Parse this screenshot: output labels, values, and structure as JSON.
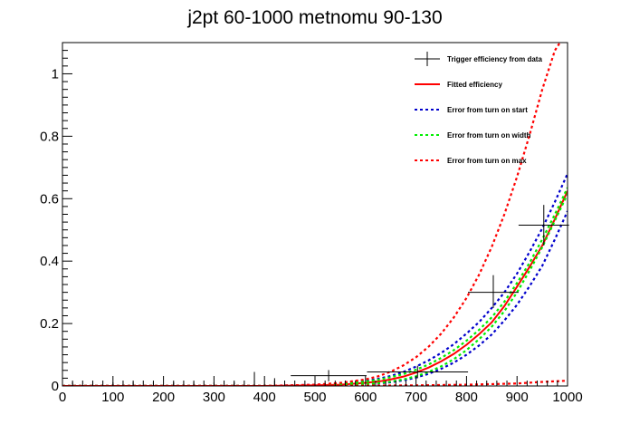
{
  "chart_data": {
    "type": "line",
    "title": "j2pt 60-1000 metnomu 90-130",
    "xlabel": "",
    "ylabel": "",
    "xlim": [
      0,
      1000
    ],
    "ylim": [
      0,
      1.1
    ],
    "x_ticks": [
      0,
      100,
      200,
      300,
      400,
      500,
      600,
      700,
      800,
      900,
      1000
    ],
    "y_ticks": [
      0,
      0.2,
      0.4,
      0.6,
      0.8,
      1
    ],
    "grid": false,
    "legend_position": "top-right",
    "colors": {
      "data": "#000000",
      "fit": "#ff0000",
      "start": "#0000cc",
      "width": "#00ee00",
      "max": "#ff0000"
    },
    "legend": [
      {
        "key": "data",
        "label": "Trigger efficiency from data",
        "style": "errorbar"
      },
      {
        "key": "fit",
        "label": "Fitted efficiency",
        "style": "solid"
      },
      {
        "key": "start",
        "label": "Error from turn on start",
        "style": "dotted"
      },
      {
        "key": "width",
        "label": "Error from turn on width",
        "style": "dotted"
      },
      {
        "key": "max",
        "label": "Error from turn on max",
        "style": "dotted"
      }
    ],
    "data_points": [
      {
        "x": 20,
        "y": 0,
        "xerr": 20,
        "yerr_up": 0.012,
        "yerr_down": 0
      },
      {
        "x": 60,
        "y": 0,
        "xerr": 20,
        "yerr_up": 0.012,
        "yerr_down": 0
      },
      {
        "x": 100,
        "y": 0,
        "xerr": 20,
        "yerr_up": 0.012,
        "yerr_down": 0
      },
      {
        "x": 140,
        "y": 0,
        "xerr": 20,
        "yerr_up": 0.012,
        "yerr_down": 0
      },
      {
        "x": 180,
        "y": 0,
        "xerr": 20,
        "yerr_up": 0.012,
        "yerr_down": 0
      },
      {
        "x": 220,
        "y": 0,
        "xerr": 20,
        "yerr_up": 0.012,
        "yerr_down": 0
      },
      {
        "x": 260,
        "y": 0,
        "xerr": 20,
        "yerr_up": 0.012,
        "yerr_down": 0
      },
      {
        "x": 300,
        "y": 0,
        "xerr": 20,
        "yerr_up": 0.012,
        "yerr_down": 0
      },
      {
        "x": 340,
        "y": 0,
        "xerr": 20,
        "yerr_up": 0.012,
        "yerr_down": 0
      },
      {
        "x": 380,
        "y": 0,
        "xerr": 20,
        "yerr_up": 0.045,
        "yerr_down": 0
      },
      {
        "x": 420,
        "y": 0,
        "xerr": 20,
        "yerr_up": 0.025,
        "yerr_down": 0
      },
      {
        "x": 527,
        "y": 0.033,
        "xerr": 75,
        "yerr_up": 0.018,
        "yerr_down": 0.018
      },
      {
        "x": 703,
        "y": 0.045,
        "xerr": 100,
        "yerr_up": 0.02,
        "yerr_down": 0.02
      },
      {
        "x": 853,
        "y": 0.3,
        "xerr": 50,
        "yerr_up": 0.055,
        "yerr_down": 0.05
      },
      {
        "x": 953,
        "y": 0.515,
        "xerr": 50,
        "yerr_up": 0.065,
        "yerr_down": 0.065
      }
    ],
    "series": [
      {
        "name": "Fitted efficiency",
        "key": "fit",
        "x": [
          0,
          100,
          200,
          300,
          400,
          500,
          550,
          600,
          625,
          650,
          675,
          700,
          725,
          750,
          775,
          800,
          825,
          850,
          875,
          900,
          925,
          950,
          975,
          1000
        ],
        "y": [
          0,
          0,
          0,
          0,
          0,
          0.002,
          0.004,
          0.01,
          0.014,
          0.021,
          0.03,
          0.043,
          0.059,
          0.079,
          0.103,
          0.132,
          0.166,
          0.204,
          0.256,
          0.318,
          0.382,
          0.45,
          0.535,
          0.625
        ]
      },
      {
        "name": "Error from turn on start",
        "key": "start",
        "x": [
          0,
          100,
          200,
          300,
          400,
          500,
          550,
          600,
          625,
          650,
          675,
          700,
          725,
          750,
          775,
          800,
          825,
          850,
          875,
          900,
          925,
          950,
          975,
          1000
        ],
        "y": [
          0,
          0,
          0,
          0,
          0,
          0.004,
          0.008,
          0.016,
          0.023,
          0.032,
          0.045,
          0.062,
          0.082,
          0.106,
          0.134,
          0.168,
          0.205,
          0.25,
          0.3,
          0.36,
          0.43,
          0.505,
          0.59,
          0.68
        ]
      },
      {
        "name": "Error from turn on start",
        "key": "start",
        "x": [
          0,
          100,
          200,
          300,
          400,
          500,
          550,
          600,
          625,
          650,
          675,
          700,
          725,
          750,
          775,
          800,
          825,
          850,
          875,
          900,
          925,
          950,
          975,
          1000
        ],
        "y": [
          0,
          0,
          0,
          0,
          0,
          0.001,
          0.002,
          0.005,
          0.008,
          0.012,
          0.018,
          0.027,
          0.039,
          0.055,
          0.075,
          0.1,
          0.13,
          0.165,
          0.21,
          0.26,
          0.32,
          0.385,
          0.47,
          0.56
        ]
      },
      {
        "name": "Error from turn on width",
        "key": "width",
        "x": [
          0,
          100,
          200,
          300,
          400,
          500,
          550,
          600,
          625,
          650,
          675,
          700,
          725,
          750,
          775,
          800,
          825,
          850,
          875,
          900,
          925,
          950,
          975,
          1000
        ],
        "y": [
          0,
          0,
          0,
          0,
          0,
          0.003,
          0.007,
          0.014,
          0.02,
          0.028,
          0.038,
          0.052,
          0.069,
          0.09,
          0.115,
          0.145,
          0.18,
          0.22,
          0.27,
          0.33,
          0.395,
          0.47,
          0.55,
          0.635
        ]
      },
      {
        "name": "Error from turn on width",
        "key": "width",
        "x": [
          0,
          100,
          200,
          300,
          400,
          500,
          550,
          600,
          625,
          650,
          675,
          700,
          725,
          750,
          775,
          800,
          825,
          850,
          875,
          900,
          925,
          950,
          975,
          1000
        ],
        "y": [
          0,
          0,
          0,
          0,
          0,
          0.001,
          0.002,
          0.006,
          0.009,
          0.014,
          0.021,
          0.031,
          0.045,
          0.063,
          0.086,
          0.115,
          0.15,
          0.19,
          0.24,
          0.3,
          0.37,
          0.445,
          0.53,
          0.615
        ]
      },
      {
        "name": "Error from turn on max",
        "key": "max",
        "x": [
          0,
          100,
          200,
          300,
          400,
          500,
          550,
          600,
          625,
          650,
          675,
          700,
          725,
          750,
          775,
          800,
          825,
          850,
          875,
          900,
          925,
          950,
          975,
          985
        ],
        "y": [
          0,
          0,
          0,
          0,
          0,
          0.004,
          0.01,
          0.021,
          0.031,
          0.046,
          0.066,
          0.092,
          0.126,
          0.168,
          0.22,
          0.282,
          0.357,
          0.446,
          0.55,
          0.67,
          0.805,
          0.95,
          1.075,
          1.1
        ]
      },
      {
        "name": "Error from turn on max",
        "key": "max",
        "x": [
          0,
          100,
          200,
          300,
          400,
          500,
          600,
          700,
          800,
          900,
          950,
          1000
        ],
        "y": [
          0,
          0,
          0,
          0,
          0,
          0,
          0.001,
          0.002,
          0.004,
          0.008,
          0.013,
          0.017
        ]
      }
    ]
  }
}
